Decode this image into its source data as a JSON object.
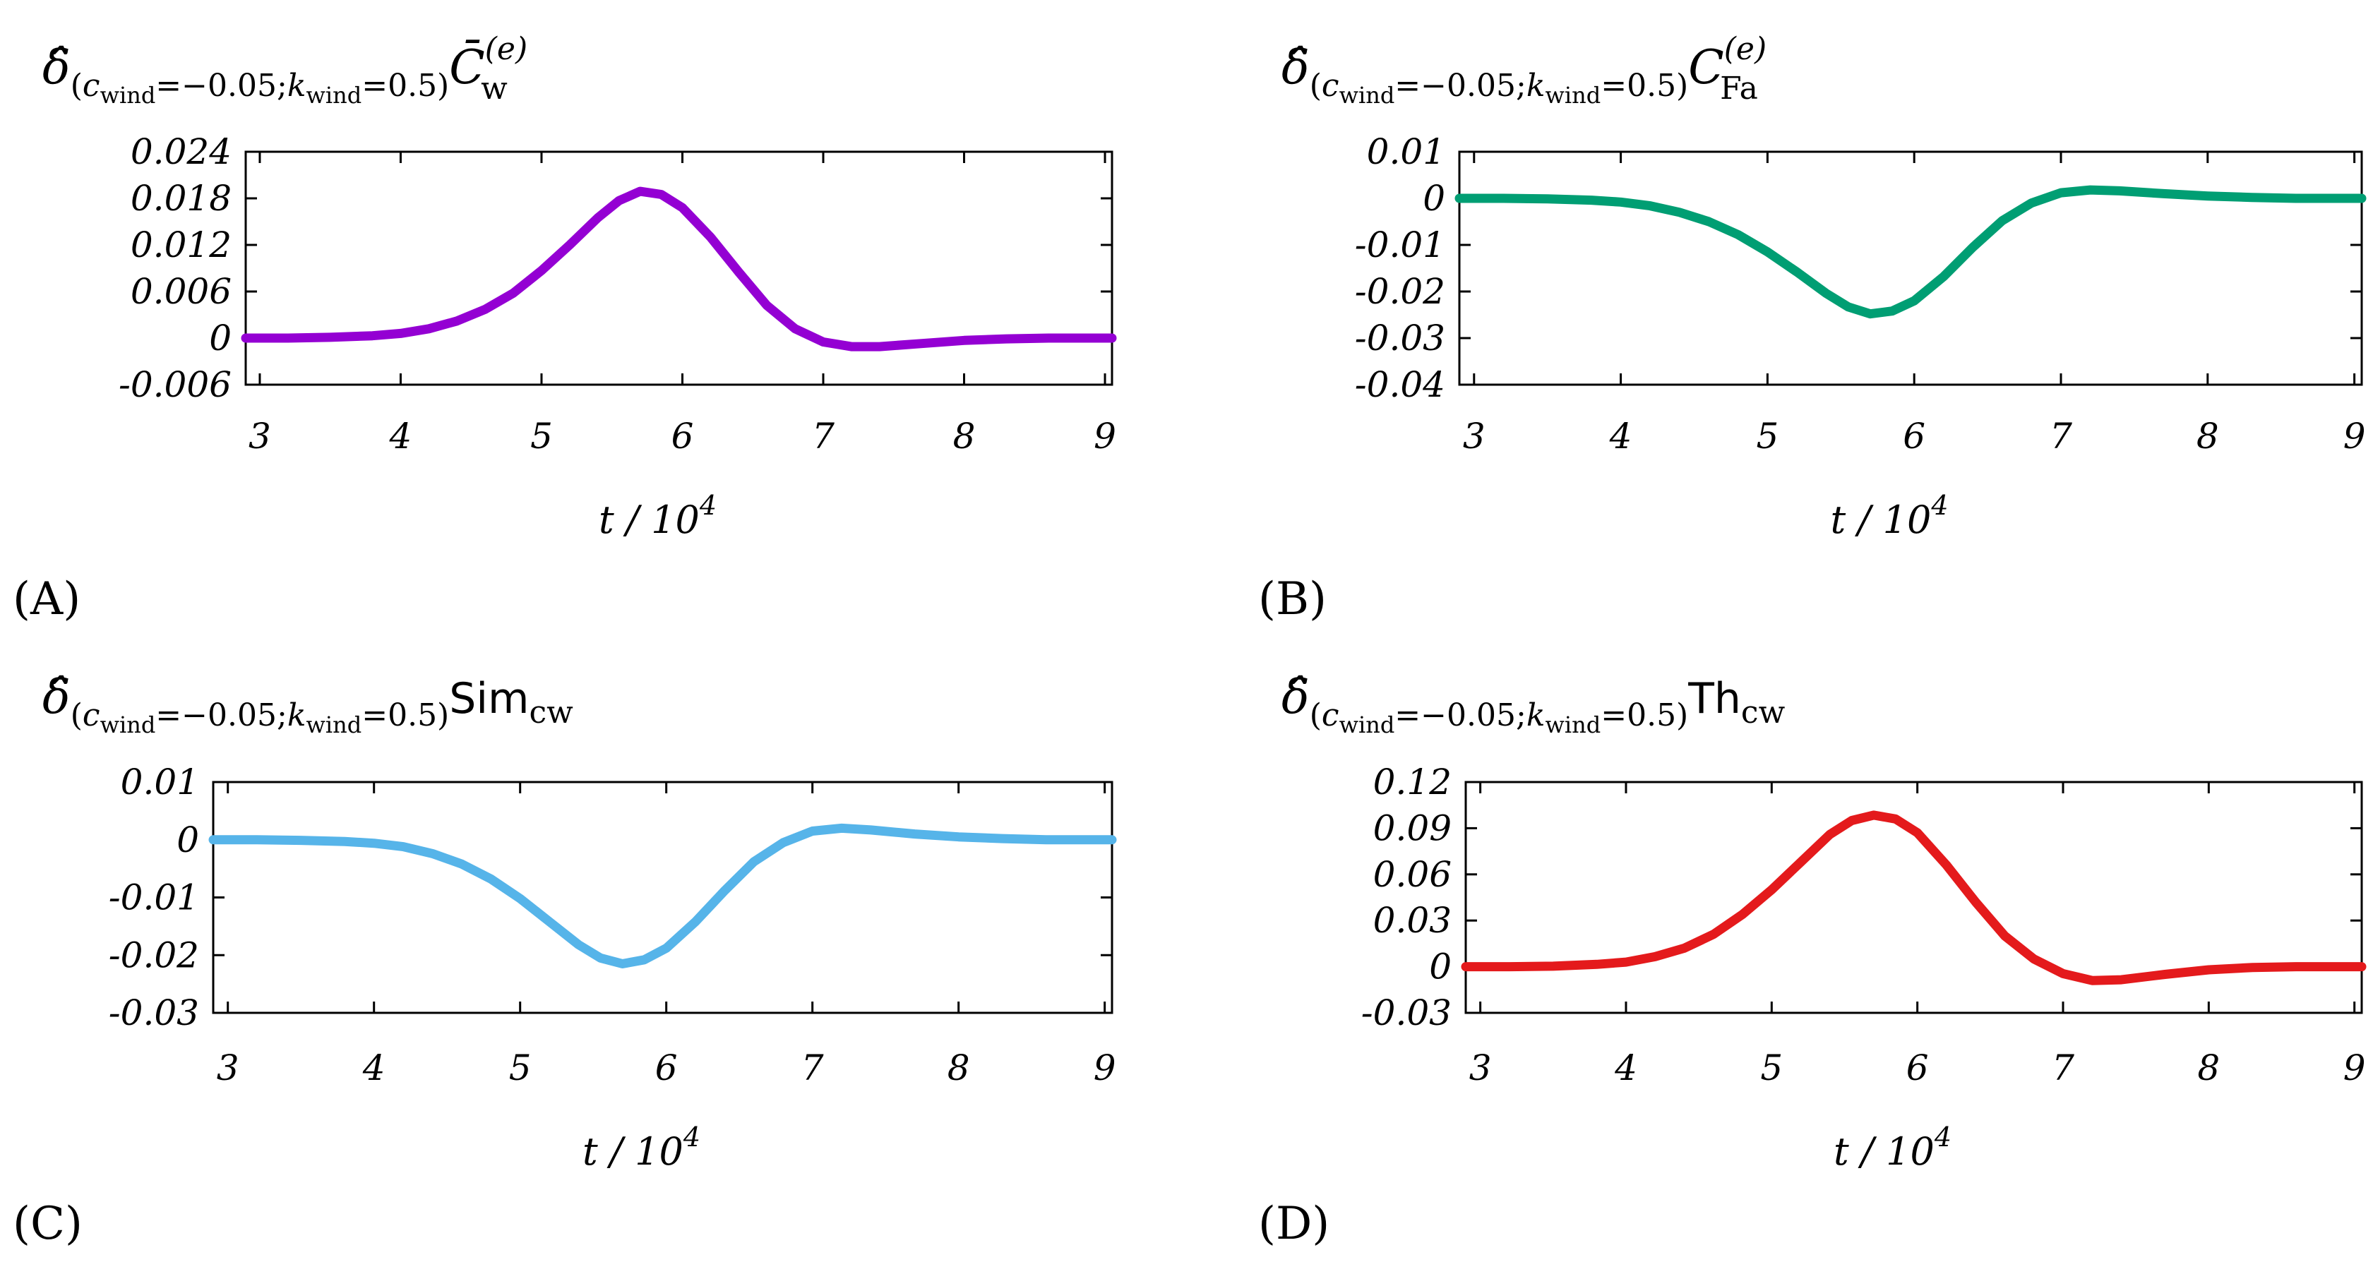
{
  "chart_data": [
    {
      "id": "A",
      "type": "line",
      "panel_label": "(A)",
      "title": {
        "prefix": "δ̂",
        "subscript": "(c_wind=−0.05;k_wind=0.5)",
        "subscript_parts": [
          "(",
          "c",
          "wind",
          "=−0.05;",
          "k",
          "wind",
          "=0.5)"
        ],
        "quantity": "C̄",
        "quantity_sub": "w",
        "quantity_sup": "(e)"
      },
      "xlabel": "t / 10",
      "xlabel_exp": "4",
      "xlim": [
        2.9,
        9.05
      ],
      "ylim": [
        -0.006,
        0.024
      ],
      "xticks": [
        3,
        4,
        5,
        6,
        7,
        8,
        9
      ],
      "yticks": [
        -0.006,
        0,
        0.006,
        0.012,
        0.018,
        0.024
      ],
      "ytick_labels": [
        "-0.006",
        "0",
        "0.006",
        "0.012",
        "0.018",
        "0.024"
      ],
      "color": "#9400d3",
      "series": [
        {
          "name": "C_w",
          "x": [
            2.9,
            3.2,
            3.5,
            3.8,
            4.0,
            4.2,
            4.4,
            4.6,
            4.8,
            5.0,
            5.2,
            5.4,
            5.55,
            5.7,
            5.85,
            6.0,
            6.2,
            6.4,
            6.6,
            6.8,
            7.0,
            7.2,
            7.4,
            7.7,
            8.0,
            8.3,
            8.6,
            9.05
          ],
          "y": [
            0,
            0,
            0.0001,
            0.0003,
            0.0006,
            0.0012,
            0.0022,
            0.0037,
            0.0058,
            0.0087,
            0.012,
            0.0155,
            0.0177,
            0.0189,
            0.0185,
            0.0168,
            0.013,
            0.0085,
            0.0042,
            0.0012,
            -0.0005,
            -0.0011,
            -0.0011,
            -0.0007,
            -0.0003,
            -0.0001,
            0,
            0
          ]
        }
      ]
    },
    {
      "id": "B",
      "type": "line",
      "panel_label": "(B)",
      "title": {
        "prefix": "δ̂",
        "subscript": "(c_wind=−0.05;k_wind=0.5)",
        "subscript_parts": [
          "(",
          "c",
          "wind",
          "=−0.05;",
          "k",
          "wind",
          "=0.5)"
        ],
        "quantity": "C",
        "quantity_sub": "Fa",
        "quantity_sup": "(e)"
      },
      "xlabel": "t / 10",
      "xlabel_exp": "4",
      "xlim": [
        2.9,
        9.05
      ],
      "ylim": [
        -0.04,
        0.01
      ],
      "xticks": [
        3,
        4,
        5,
        6,
        7,
        8,
        9
      ],
      "yticks": [
        -0.04,
        -0.03,
        -0.02,
        -0.01,
        0,
        0.01
      ],
      "ytick_labels": [
        "-0.04",
        "-0.03",
        "-0.02",
        "-0.01",
        "0",
        "0.01"
      ],
      "color": "#009e73",
      "series": [
        {
          "name": "C_Fa",
          "x": [
            2.9,
            3.2,
            3.5,
            3.8,
            4.0,
            4.2,
            4.4,
            4.6,
            4.8,
            5.0,
            5.2,
            5.4,
            5.55,
            5.7,
            5.85,
            6.0,
            6.2,
            6.4,
            6.6,
            6.8,
            7.0,
            7.2,
            7.4,
            7.7,
            8.0,
            8.3,
            8.6,
            9.05
          ],
          "y": [
            0,
            0,
            -0.0001,
            -0.0004,
            -0.0008,
            -0.0016,
            -0.003,
            -0.005,
            -0.0078,
            -0.0115,
            -0.0158,
            -0.0204,
            -0.0233,
            -0.0248,
            -0.0242,
            -0.022,
            -0.0168,
            -0.0105,
            -0.0048,
            -0.001,
            0.0012,
            0.0018,
            0.0016,
            0.001,
            0.0005,
            0.0002,
            0,
            0
          ]
        }
      ]
    },
    {
      "id": "C",
      "type": "line",
      "panel_label": "(C)",
      "title": {
        "prefix": "δ̂",
        "subscript": "(c_wind=−0.05;k_wind=0.5)",
        "subscript_parts": [
          "(",
          "c",
          "wind",
          "=−0.05;",
          "k",
          "wind",
          "=0.5)"
        ],
        "quantity": "Sim",
        "quantity_sub": "cw",
        "quantity_sup": ""
      },
      "xlabel": "t / 10",
      "xlabel_exp": "4",
      "xlim": [
        2.9,
        9.05
      ],
      "ylim": [
        -0.03,
        0.01
      ],
      "xticks": [
        3,
        4,
        5,
        6,
        7,
        8,
        9
      ],
      "yticks": [
        -0.03,
        -0.02,
        -0.01,
        0,
        0.01
      ],
      "ytick_labels": [
        "-0.03",
        "-0.02",
        "-0.01",
        "0",
        "0.01"
      ],
      "color": "#56b4e9",
      "series": [
        {
          "name": "Sim_cw",
          "x": [
            2.9,
            3.2,
            3.5,
            3.8,
            4.0,
            4.2,
            4.4,
            4.6,
            4.8,
            5.0,
            5.2,
            5.4,
            5.55,
            5.7,
            5.85,
            6.0,
            6.2,
            6.4,
            6.6,
            6.8,
            7.0,
            7.2,
            7.4,
            7.7,
            8.0,
            8.3,
            8.6,
            9.05
          ],
          "y": [
            0,
            0,
            -0.0001,
            -0.0003,
            -0.0006,
            -0.0012,
            -0.0024,
            -0.0042,
            -0.0068,
            -0.0102,
            -0.0142,
            -0.0182,
            -0.0205,
            -0.0215,
            -0.0208,
            -0.0188,
            -0.0142,
            -0.0088,
            -0.0038,
            -0.0005,
            0.0015,
            0.002,
            0.0017,
            0.001,
            0.0005,
            0.0002,
            0,
            0
          ]
        }
      ]
    },
    {
      "id": "D",
      "type": "line",
      "panel_label": "(D)",
      "title": {
        "prefix": "δ̂",
        "subscript": "(c_wind=−0.05;k_wind=0.5)",
        "subscript_parts": [
          "(",
          "c",
          "wind",
          "=−0.05;",
          "k",
          "wind",
          "=0.5)"
        ],
        "quantity": "Th",
        "quantity_sub": "cw",
        "quantity_sup": ""
      },
      "xlabel": "t / 10",
      "xlabel_exp": "4",
      "xlim": [
        2.9,
        9.05
      ],
      "ylim": [
        -0.03,
        0.12
      ],
      "xticks": [
        3,
        4,
        5,
        6,
        7,
        8,
        9
      ],
      "yticks": [
        -0.03,
        0,
        0.03,
        0.06,
        0.09,
        0.12
      ],
      "ytick_labels": [
        "-0.03",
        "0",
        "0.03",
        "0.06",
        "0.09",
        "0.12"
      ],
      "color": "#e41a1c",
      "series": [
        {
          "name": "Th_cw",
          "x": [
            2.9,
            3.2,
            3.5,
            3.8,
            4.0,
            4.2,
            4.4,
            4.6,
            4.8,
            5.0,
            5.2,
            5.4,
            5.55,
            5.7,
            5.85,
            6.0,
            6.2,
            6.4,
            6.6,
            6.8,
            7.0,
            7.2,
            7.4,
            7.7,
            8.0,
            8.3,
            8.6,
            9.05
          ],
          "y": [
            0,
            0,
            0.0003,
            0.0015,
            0.003,
            0.0065,
            0.012,
            0.021,
            0.034,
            0.05,
            0.068,
            0.086,
            0.095,
            0.0985,
            0.096,
            0.087,
            0.066,
            0.042,
            0.02,
            0.005,
            -0.0045,
            -0.009,
            -0.0085,
            -0.005,
            -0.002,
            -0.0005,
            0,
            0
          ]
        }
      ]
    }
  ]
}
